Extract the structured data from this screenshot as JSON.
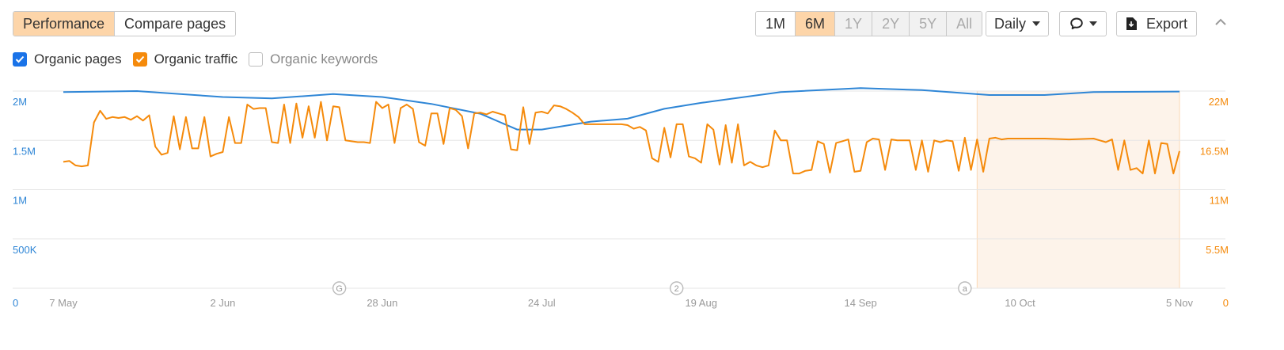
{
  "tabs": [
    {
      "label": "Performance",
      "active": true
    },
    {
      "label": "Compare pages",
      "active": false
    }
  ],
  "ranges": [
    {
      "label": "1M",
      "state": "normal"
    },
    {
      "label": "6M",
      "state": "active"
    },
    {
      "label": "1Y",
      "state": "disabled"
    },
    {
      "label": "2Y",
      "state": "disabled"
    },
    {
      "label": "5Y",
      "state": "disabled"
    },
    {
      "label": "All",
      "state": "disabled"
    }
  ],
  "granularity": {
    "label": "Daily",
    "icon": "chevron-down-icon"
  },
  "annotations_button": {
    "icon": "comment-icon"
  },
  "export_button": {
    "label": "Export",
    "icon": "download-icon"
  },
  "collapse_button": {
    "icon": "chevron-up-icon"
  },
  "legend": [
    {
      "label": "Organic pages",
      "checked": true,
      "color": "#2f86d6"
    },
    {
      "label": "Organic traffic",
      "checked": true,
      "color": "#f58a0b"
    },
    {
      "label": "Organic keywords",
      "checked": false,
      "color": "#888888"
    }
  ],
  "chart_data": {
    "type": "line",
    "x_tick_labels": [
      "7 May",
      "2 Jun",
      "28 Jun",
      "24 Jul",
      "19 Aug",
      "14 Sep",
      "10 Oct",
      "5 Nov"
    ],
    "x_start": "7 May",
    "x_end": "5 Nov",
    "y_left": {
      "ticks": [
        "0",
        "500K",
        "1M",
        "1.5M",
        "2M"
      ],
      "range": [
        0,
        2000000
      ],
      "color": "#2f86d6"
    },
    "y_right": {
      "ticks": [
        "0",
        "5.5M",
        "11M",
        "16.5M",
        "22M"
      ],
      "range": [
        0,
        22000000
      ],
      "color": "#f58a0b"
    },
    "grid": true,
    "markers": [
      {
        "label": "G",
        "date": "21 Jun"
      },
      {
        "label": "2",
        "date": "15 Aug"
      },
      {
        "label": "a",
        "date": "1 Oct"
      }
    ],
    "highlight": {
      "from": "3 Oct",
      "to": "5 Nov",
      "color": "#fdf3ea"
    },
    "series": [
      {
        "name": "Organic pages",
        "axis": "left",
        "color": "#2f86d6",
        "points": [
          [
            "7 May",
            1990000
          ],
          [
            "19 May",
            2000000
          ],
          [
            "2 Jun",
            1940000
          ],
          [
            "10 Jun",
            1925000
          ],
          [
            "20 Jun",
            1970000
          ],
          [
            "28 Jun",
            1940000
          ],
          [
            "6 Jul",
            1870000
          ],
          [
            "14 Jul",
            1770000
          ],
          [
            "20 Jul",
            1610000
          ],
          [
            "24 Jul",
            1610000
          ],
          [
            "1 Aug",
            1690000
          ],
          [
            "7 Aug",
            1720000
          ],
          [
            "13 Aug",
            1820000
          ],
          [
            "19 Aug",
            1880000
          ],
          [
            "1 Sep",
            1990000
          ],
          [
            "14 Sep",
            2030000
          ],
          [
            "24 Sep",
            2010000
          ],
          [
            "5 Oct",
            1960000
          ],
          [
            "14 Oct",
            1960000
          ],
          [
            "22 Oct",
            1990000
          ],
          [
            "5 Nov",
            1995000
          ]
        ]
      },
      {
        "name": "Organic traffic",
        "axis": "right",
        "color": "#f58a0b",
        "points": [
          [
            "7 May",
            14100000
          ],
          [
            "8 May",
            14200000
          ],
          [
            "9 May",
            13700000
          ],
          [
            "10 May",
            13600000
          ],
          [
            "11 May",
            13700000
          ],
          [
            "12 May",
            18500000
          ],
          [
            "13 May",
            19800000
          ],
          [
            "14 May",
            18900000
          ],
          [
            "15 May",
            19100000
          ],
          [
            "16 May",
            19000000
          ],
          [
            "17 May",
            19100000
          ],
          [
            "18 May",
            18800000
          ],
          [
            "19 May",
            19200000
          ],
          [
            "20 May",
            18700000
          ],
          [
            "21 May",
            19300000
          ],
          [
            "22 May",
            15800000
          ],
          [
            "23 May",
            14900000
          ],
          [
            "24 May",
            15100000
          ],
          [
            "25 May",
            19200000
          ],
          [
            "26 May",
            15500000
          ],
          [
            "27 May",
            19100000
          ],
          [
            "28 May",
            15600000
          ],
          [
            "29 May",
            15600000
          ],
          [
            "30 May",
            19100000
          ],
          [
            "31 May",
            14700000
          ],
          [
            "1 Jun",
            15000000
          ],
          [
            "2 Jun",
            15200000
          ],
          [
            "3 Jun",
            19100000
          ],
          [
            "4 Jun",
            16200000
          ],
          [
            "5 Jun",
            16200000
          ],
          [
            "6 Jun",
            20500000
          ],
          [
            "7 Jun",
            20000000
          ],
          [
            "8 Jun",
            20100000
          ],
          [
            "9 Jun",
            20100000
          ],
          [
            "10 Jun",
            16300000
          ],
          [
            "11 Jun",
            16200000
          ],
          [
            "12 Jun",
            20500000
          ],
          [
            "13 Jun",
            16200000
          ],
          [
            "14 Jun",
            20600000
          ],
          [
            "15 Jun",
            16800000
          ],
          [
            "16 Jun",
            20300000
          ],
          [
            "17 Jun",
            16800000
          ],
          [
            "18 Jun",
            20800000
          ],
          [
            "19 Jun",
            16500000
          ],
          [
            "20 Jun",
            20300000
          ],
          [
            "21 Jun",
            20200000
          ],
          [
            "22 Jun",
            16500000
          ],
          [
            "23 Jun",
            16400000
          ],
          [
            "24 Jun",
            16300000
          ],
          [
            "25 Jun",
            16300000
          ],
          [
            "26 Jun",
            16200000
          ],
          [
            "27 Jun",
            20800000
          ],
          [
            "28 Jun",
            20100000
          ],
          [
            "29 Jun",
            20500000
          ],
          [
            "30 Jun",
            16200000
          ],
          [
            "1 Jul",
            20100000
          ],
          [
            "2 Jul",
            20500000
          ],
          [
            "3 Jul",
            20000000
          ],
          [
            "4 Jul",
            16300000
          ],
          [
            "5 Jul",
            15900000
          ],
          [
            "6 Jul",
            19500000
          ],
          [
            "7 Jul",
            19500000
          ],
          [
            "8 Jul",
            16100000
          ],
          [
            "9 Jul",
            20100000
          ],
          [
            "10 Jul",
            19900000
          ],
          [
            "11 Jul",
            19200000
          ],
          [
            "12 Jul",
            15600000
          ],
          [
            "13 Jul",
            19500000
          ],
          [
            "14 Jul",
            19600000
          ],
          [
            "15 Jul",
            19400000
          ],
          [
            "16 Jul",
            19700000
          ],
          [
            "17 Jul",
            19500000
          ],
          [
            "18 Jul",
            19300000
          ],
          [
            "19 Jul",
            15500000
          ],
          [
            "20 Jul",
            15400000
          ],
          [
            "21 Jul",
            20200000
          ],
          [
            "22 Jul",
            16100000
          ],
          [
            "23 Jul",
            19600000
          ],
          [
            "24 Jul",
            19700000
          ],
          [
            "25 Jul",
            19500000
          ],
          [
            "26 Jul",
            20400000
          ],
          [
            "27 Jul",
            20300000
          ],
          [
            "28 Jul",
            20000000
          ],
          [
            "29 Jul",
            19600000
          ],
          [
            "30 Jul",
            19100000
          ],
          [
            "31 Jul",
            18300000
          ],
          [
            "1 Aug",
            18300000
          ],
          [
            "4 Aug",
            18300000
          ],
          [
            "6 Aug",
            18300000
          ],
          [
            "7 Aug",
            18200000
          ],
          [
            "8 Aug",
            17800000
          ],
          [
            "9 Aug",
            18000000
          ],
          [
            "10 Aug",
            17600000
          ],
          [
            "11 Aug",
            14500000
          ],
          [
            "12 Aug",
            14100000
          ],
          [
            "13 Aug",
            17900000
          ],
          [
            "14 Aug",
            14600000
          ],
          [
            "15 Aug",
            18300000
          ],
          [
            "16 Aug",
            18300000
          ],
          [
            "17 Aug",
            14700000
          ],
          [
            "18 Aug",
            14500000
          ],
          [
            "19 Aug",
            14000000
          ],
          [
            "20 Aug",
            18300000
          ],
          [
            "21 Aug",
            17700000
          ],
          [
            "22 Aug",
            13800000
          ],
          [
            "23 Aug",
            18200000
          ],
          [
            "24 Aug",
            14000000
          ],
          [
            "25 Aug",
            18300000
          ],
          [
            "26 Aug",
            13700000
          ],
          [
            "27 Aug",
            14100000
          ],
          [
            "28 Aug",
            13700000
          ],
          [
            "29 Aug",
            13500000
          ],
          [
            "30 Aug",
            13700000
          ],
          [
            "31 Aug",
            17600000
          ],
          [
            "1 Sep",
            16500000
          ],
          [
            "2 Sep",
            16500000
          ],
          [
            "3 Sep",
            12800000
          ],
          [
            "4 Sep",
            12800000
          ],
          [
            "5 Sep",
            13100000
          ],
          [
            "6 Sep",
            13200000
          ],
          [
            "7 Sep",
            16400000
          ],
          [
            "8 Sep",
            16100000
          ],
          [
            "9 Sep",
            12900000
          ],
          [
            "10 Sep",
            16200000
          ],
          [
            "11 Sep",
            16400000
          ],
          [
            "12 Sep",
            16600000
          ],
          [
            "13 Sep",
            13000000
          ],
          [
            "14 Sep",
            13100000
          ],
          [
            "15 Sep",
            16300000
          ],
          [
            "16 Sep",
            16700000
          ],
          [
            "17 Sep",
            16600000
          ],
          [
            "18 Sep",
            13200000
          ],
          [
            "19 Sep",
            16600000
          ],
          [
            "20 Sep",
            16500000
          ],
          [
            "21 Sep",
            16500000
          ],
          [
            "22 Sep",
            16500000
          ],
          [
            "23 Sep",
            13200000
          ],
          [
            "24 Sep",
            16500000
          ],
          [
            "25 Sep",
            13000000
          ],
          [
            "26 Sep",
            16500000
          ],
          [
            "27 Sep",
            16300000
          ],
          [
            "28 Sep",
            16500000
          ],
          [
            "29 Sep",
            16400000
          ],
          [
            "30 Sep",
            13100000
          ],
          [
            "1 Oct",
            16800000
          ],
          [
            "2 Oct",
            13200000
          ],
          [
            "3 Oct",
            16600000
          ],
          [
            "4 Oct",
            13000000
          ],
          [
            "5 Oct",
            16700000
          ],
          [
            "6 Oct",
            16800000
          ],
          [
            "7 Oct",
            16600000
          ],
          [
            "8 Oct",
            16700000
          ],
          [
            "10 Oct",
            16700000
          ],
          [
            "14 Oct",
            16700000
          ],
          [
            "18 Oct",
            16600000
          ],
          [
            "22 Oct",
            16700000
          ],
          [
            "23 Oct",
            16500000
          ],
          [
            "24 Oct",
            16300000
          ],
          [
            "25 Oct",
            16600000
          ],
          [
            "26 Oct",
            13200000
          ],
          [
            "27 Oct",
            16500000
          ],
          [
            "28 Oct",
            13200000
          ],
          [
            "29 Oct",
            13400000
          ],
          [
            "30 Oct",
            12800000
          ],
          [
            "31 Oct",
            16500000
          ],
          [
            "1 Nov",
            12800000
          ],
          [
            "2 Nov",
            16200000
          ],
          [
            "3 Nov",
            16100000
          ],
          [
            "4 Nov",
            12800000
          ],
          [
            "5 Nov",
            15300000
          ]
        ]
      }
    ]
  }
}
